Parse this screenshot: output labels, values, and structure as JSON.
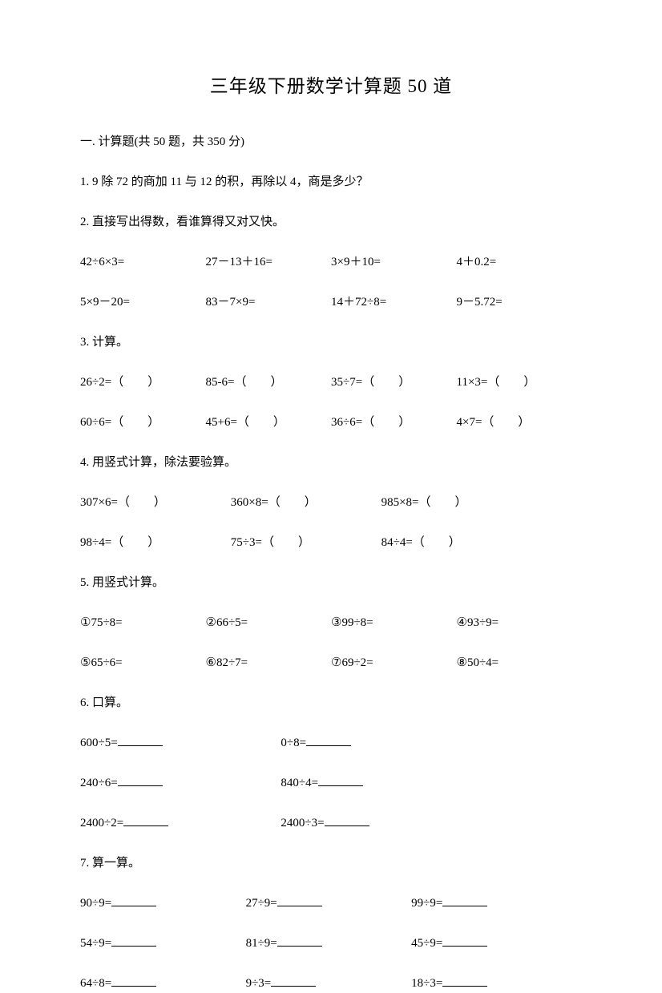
{
  "title": "三年级下册数学计算题 50 道",
  "section": "一. 计算题(共 50 题，共 350 分)",
  "q1": "1. 9 除 72 的商加 11 与 12 的积，再除以 4，商是多少？",
  "q2": "2. 直接写出得数，看谁算得又对又快。",
  "q2r1": {
    "a": "42÷6×3=",
    "b": "27－13＋16=",
    "c": "3×9＋10=",
    "d": "4＋0.2="
  },
  "q2r2": {
    "a": "5×9－20=",
    "b": "83－7×9=",
    "c": "14＋72÷8=",
    "d": "9－5.72="
  },
  "q3": "3. 计算。",
  "q3r1": {
    "a": "26÷2=（　　）",
    "b": "85-6=（　　）",
    "c": "35÷7=（　　）",
    "d": "11×3=（　　）"
  },
  "q3r2": {
    "a": "60÷6=（　　）",
    "b": "45+6=（　　）",
    "c": "36÷6=（　　）",
    "d": "4×7=（　　）"
  },
  "q4": "4. 用竖式计算，除法要验算。",
  "q4r1": {
    "a": "307×6=（　　）",
    "b": "360×8=（　　）",
    "c": "985×8=（　　）"
  },
  "q4r2": {
    "a": "98÷4=（　　）",
    "b": "75÷3=（　　）",
    "c": "84÷4=（　　）"
  },
  "q5": "5. 用竖式计算。",
  "q5r1": {
    "a": "①75÷8=",
    "b": "②66÷5=",
    "c": "③99÷8=",
    "d": "④93÷9="
  },
  "q5r2": {
    "a": "⑤65÷6=",
    "b": "⑥82÷7=",
    "c": "⑦69÷2=",
    "d": "⑧50÷4="
  },
  "q6": "6. 口算。",
  "q6r1": {
    "a": "600÷5=",
    "b": "0÷8="
  },
  "q6r2": {
    "a": "240÷6=",
    "b": "840÷4="
  },
  "q6r3": {
    "a": "2400÷2=",
    "b": "2400÷3="
  },
  "q7": "7. 算一算。",
  "q7r1": {
    "a": "90÷9=",
    "b": "27÷9=",
    "c": "99÷9="
  },
  "q7r2": {
    "a": "54÷9=",
    "b": "81÷9=",
    "c": "45÷9="
  },
  "q7r3": {
    "a": "64÷8=",
    "b": "9÷3=",
    "c": "18÷3="
  }
}
